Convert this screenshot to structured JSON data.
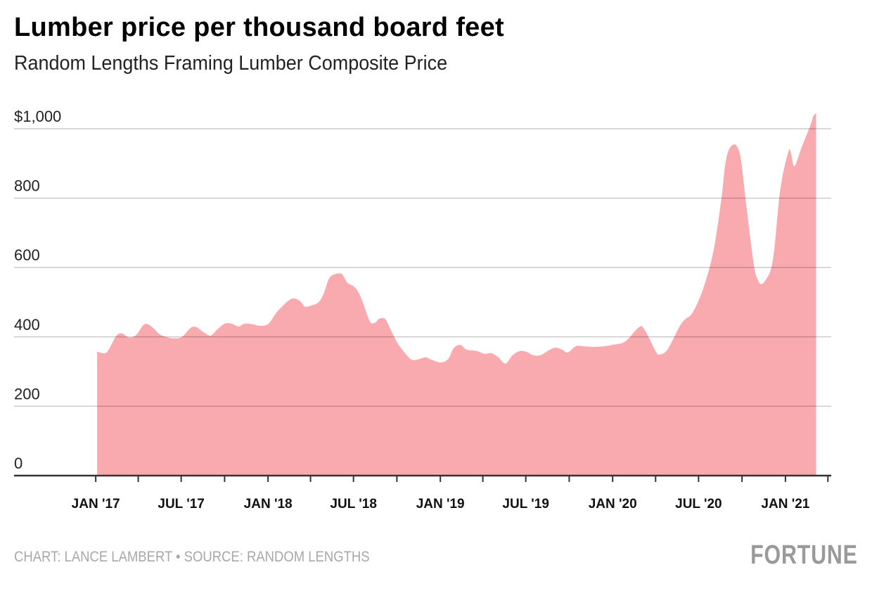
{
  "chart_data": {
    "type": "area",
    "title": "Lumber price per thousand board feet",
    "subtitle": "Random Lengths Framing Lumber Composite Price",
    "xlabel": "",
    "ylabel": "",
    "ylim": [
      0,
      1000
    ],
    "xlim": [
      "2016-07-12",
      "2021-04-08"
    ],
    "grid": true,
    "fill_color": "#f8aaae",
    "y_ticks": [
      {
        "value": 0,
        "label": "0"
      },
      {
        "value": 200,
        "label": "200"
      },
      {
        "value": 400,
        "label": "400"
      },
      {
        "value": 600,
        "label": "600"
      },
      {
        "value": 800,
        "label": "800"
      },
      {
        "value": 1000,
        "label": "$1,000"
      }
    ],
    "x_ticks": [
      {
        "date": "2017-01-01",
        "label": "JAN '17"
      },
      {
        "date": "2017-04-01",
        "label": ""
      },
      {
        "date": "2017-07-01",
        "label": "JUL '17"
      },
      {
        "date": "2017-10-01",
        "label": ""
      },
      {
        "date": "2018-01-01",
        "label": "JAN '18"
      },
      {
        "date": "2018-04-01",
        "label": ""
      },
      {
        "date": "2018-07-01",
        "label": "JUL '18"
      },
      {
        "date": "2018-10-01",
        "label": ""
      },
      {
        "date": "2019-01-01",
        "label": "JAN '19"
      },
      {
        "date": "2019-04-01",
        "label": ""
      },
      {
        "date": "2019-07-01",
        "label": "JUL '19"
      },
      {
        "date": "2019-10-01",
        "label": ""
      },
      {
        "date": "2020-01-01",
        "label": "JAN '20"
      },
      {
        "date": "2020-04-01",
        "label": ""
      },
      {
        "date": "2020-07-01",
        "label": "JUL '20"
      },
      {
        "date": "2020-10-01",
        "label": ""
      },
      {
        "date": "2021-01-01",
        "label": "JAN '21"
      },
      {
        "date": "2021-04-01",
        "label": ""
      }
    ],
    "points": [
      [
        "2017-01-04",
        357
      ],
      [
        "2017-01-21",
        353
      ],
      [
        "2017-01-30",
        367
      ],
      [
        "2017-02-13",
        402
      ],
      [
        "2017-02-25",
        410
      ],
      [
        "2017-03-13",
        398
      ],
      [
        "2017-03-28",
        406
      ],
      [
        "2017-04-12",
        434
      ],
      [
        "2017-04-22",
        436
      ],
      [
        "2017-05-04",
        424
      ],
      [
        "2017-05-16",
        408
      ],
      [
        "2017-06-03",
        398
      ],
      [
        "2017-06-18",
        396
      ],
      [
        "2017-07-03",
        400
      ],
      [
        "2017-07-21",
        426
      ],
      [
        "2017-08-02",
        428
      ],
      [
        "2017-08-17",
        414
      ],
      [
        "2017-09-01",
        404
      ],
      [
        "2017-09-16",
        422
      ],
      [
        "2017-10-01",
        438
      ],
      [
        "2017-10-16",
        438
      ],
      [
        "2017-10-31",
        430
      ],
      [
        "2017-11-12",
        438
      ],
      [
        "2017-11-30",
        436
      ],
      [
        "2017-12-15",
        432
      ],
      [
        "2018-01-02",
        438
      ],
      [
        "2018-01-17",
        467
      ],
      [
        "2018-01-29",
        485
      ],
      [
        "2018-02-12",
        503
      ],
      [
        "2018-02-24",
        511
      ],
      [
        "2018-03-10",
        503
      ],
      [
        "2018-03-20",
        487
      ],
      [
        "2018-04-04",
        491
      ],
      [
        "2018-04-19",
        501
      ],
      [
        "2018-04-30",
        529
      ],
      [
        "2018-05-11",
        570
      ],
      [
        "2018-05-26",
        582
      ],
      [
        "2018-06-07",
        580
      ],
      [
        "2018-06-18",
        556
      ],
      [
        "2018-07-03",
        544
      ],
      [
        "2018-07-15",
        519
      ],
      [
        "2018-07-25",
        483
      ],
      [
        "2018-08-06",
        442
      ],
      [
        "2018-08-17",
        442
      ],
      [
        "2018-08-24",
        452
      ],
      [
        "2018-09-06",
        452
      ],
      [
        "2018-09-16",
        426
      ],
      [
        "2018-10-01",
        385
      ],
      [
        "2018-10-16",
        357
      ],
      [
        "2018-10-31",
        335
      ],
      [
        "2018-11-15",
        335
      ],
      [
        "2018-11-30",
        341
      ],
      [
        "2018-12-15",
        333
      ],
      [
        "2019-01-03",
        326
      ],
      [
        "2019-01-18",
        337
      ],
      [
        "2019-01-29",
        367
      ],
      [
        "2019-02-12",
        377
      ],
      [
        "2019-02-26",
        363
      ],
      [
        "2019-03-20",
        359
      ],
      [
        "2019-04-04",
        351
      ],
      [
        "2019-04-19",
        353
      ],
      [
        "2019-05-04",
        341
      ],
      [
        "2019-05-19",
        323
      ],
      [
        "2019-06-03",
        347
      ],
      [
        "2019-06-18",
        359
      ],
      [
        "2019-07-02",
        357
      ],
      [
        "2019-07-17",
        347
      ],
      [
        "2019-08-01",
        347
      ],
      [
        "2019-08-16",
        359
      ],
      [
        "2019-09-01",
        369
      ],
      [
        "2019-09-16",
        363
      ],
      [
        "2019-09-28",
        355
      ],
      [
        "2019-10-15",
        373
      ],
      [
        "2019-10-30",
        373
      ],
      [
        "2019-11-22",
        371
      ],
      [
        "2019-12-14",
        373
      ],
      [
        "2020-01-01",
        377
      ],
      [
        "2020-01-28",
        387
      ],
      [
        "2020-02-26",
        428
      ],
      [
        "2020-03-09",
        420
      ],
      [
        "2020-04-01",
        359
      ],
      [
        "2020-04-09",
        349
      ],
      [
        "2020-04-26",
        363
      ],
      [
        "2020-05-21",
        428
      ],
      [
        "2020-06-02",
        450
      ],
      [
        "2020-06-17",
        467
      ],
      [
        "2020-07-06",
        521
      ],
      [
        "2020-07-24",
        598
      ],
      [
        "2020-08-05",
        673
      ],
      [
        "2020-08-19",
        805
      ],
      [
        "2020-08-26",
        892
      ],
      [
        "2020-09-03",
        939
      ],
      [
        "2020-09-15",
        955
      ],
      [
        "2020-09-24",
        939
      ],
      [
        "2020-09-30",
        899
      ],
      [
        "2020-10-11",
        769
      ],
      [
        "2020-10-26",
        609
      ],
      [
        "2020-11-03",
        566
      ],
      [
        "2020-11-11",
        552
      ],
      [
        "2020-11-21",
        566
      ],
      [
        "2020-12-01",
        594
      ],
      [
        "2020-12-09",
        659
      ],
      [
        "2020-12-21",
        824
      ],
      [
        "2021-01-07",
        933
      ],
      [
        "2021-01-13",
        929
      ],
      [
        "2021-01-20",
        892
      ],
      [
        "2021-02-04",
        945
      ],
      [
        "2021-02-24",
        1014
      ],
      [
        "2021-03-01",
        1036
      ],
      [
        "2021-03-07",
        1045
      ]
    ]
  },
  "footer": {
    "credit": "CHART: LANCE LAMBERT • SOURCE: RANDOM LENGTHS",
    "logo": "FORTUNE"
  }
}
